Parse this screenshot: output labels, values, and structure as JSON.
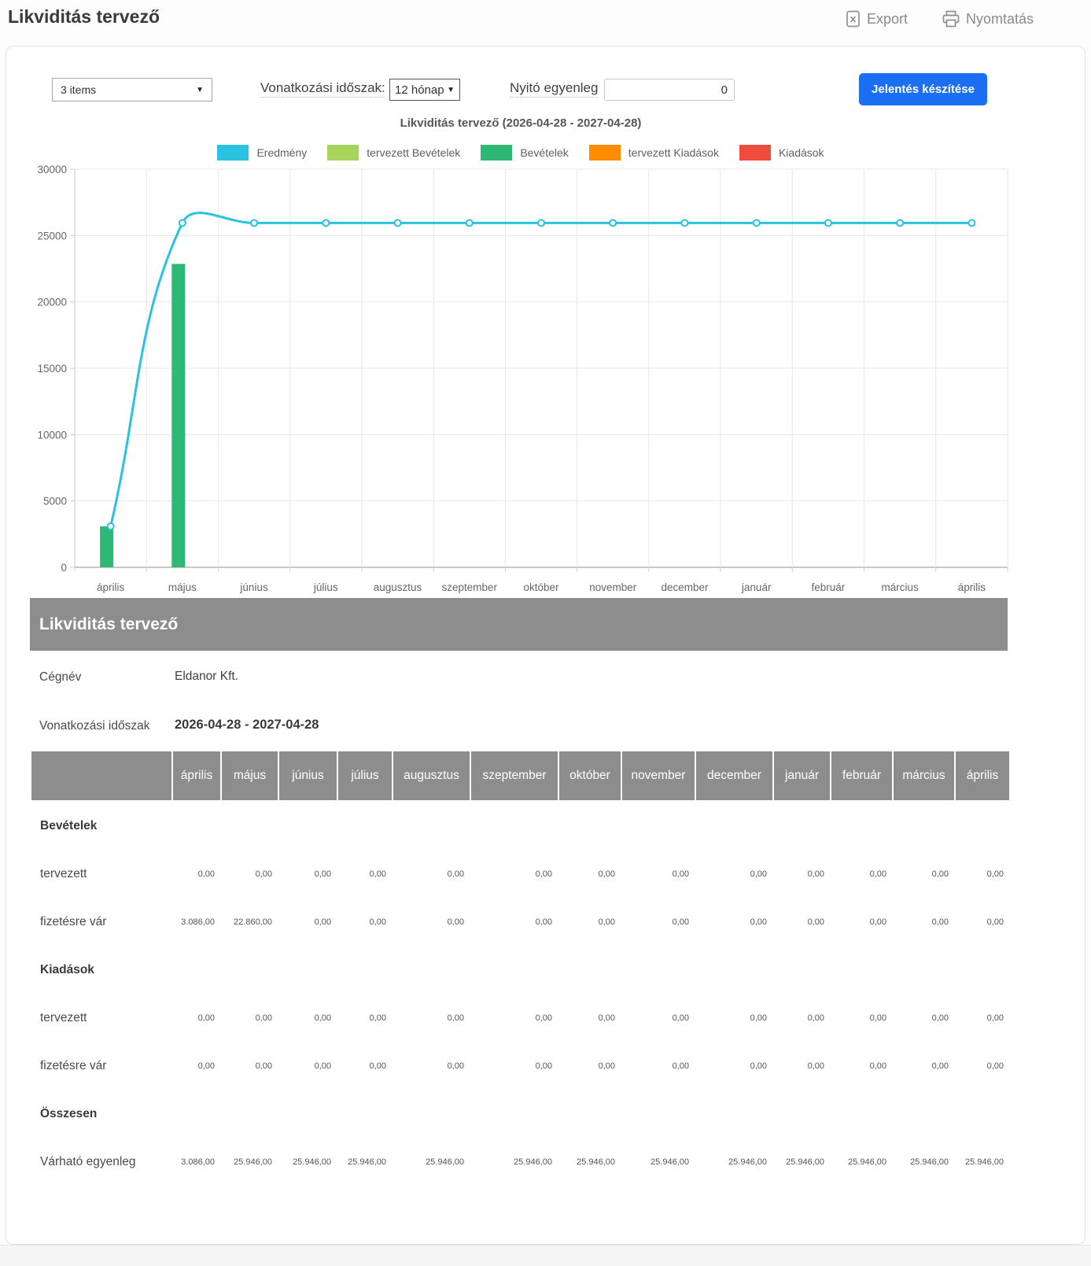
{
  "page": {
    "title": "Likviditás tervező",
    "export_label": "Export",
    "print_label": "Nyomtatás"
  },
  "toolbar": {
    "items_select": "3 items",
    "period_label": "Vonatkozási időszak:",
    "period_select": "12 hónap",
    "opening_balance_label": "Nyitó egyenleg",
    "opening_balance_value": "0",
    "report_button": "Jelentés készítése"
  },
  "chart_data": {
    "type": "line+bar",
    "title": "Likviditás tervező (2026-04-28 - 2027-04-28)",
    "categories": [
      "április",
      "május",
      "június",
      "július",
      "augusztus",
      "szeptember",
      "október",
      "november",
      "december",
      "január",
      "február",
      "március",
      "április"
    ],
    "ylim": [
      0,
      30000
    ],
    "ytick_step": 5000,
    "grid": true,
    "legend_position": "top",
    "legend": [
      {
        "label": "Eredmény",
        "color": "#29c2e1",
        "type": "line"
      },
      {
        "label": "tervezett Bevételek",
        "color": "#a8d45c",
        "type": "bar"
      },
      {
        "label": "Bevételek",
        "color": "#2db873",
        "type": "bar"
      },
      {
        "label": "tervezett Kiadások",
        "color": "#ff8c00",
        "type": "bar"
      },
      {
        "label": "Kiadások",
        "color": "#ee4c3c",
        "type": "bar"
      }
    ],
    "series": [
      {
        "name": "Eredmény",
        "type": "line",
        "color": "#29c2e1",
        "values": [
          3086,
          25946,
          25946,
          25946,
          25946,
          25946,
          25946,
          25946,
          25946,
          25946,
          25946,
          25946,
          25946
        ]
      },
      {
        "name": "tervezett Bevételek",
        "type": "bar",
        "color": "#a8d45c",
        "values": [
          0,
          0,
          0,
          0,
          0,
          0,
          0,
          0,
          0,
          0,
          0,
          0,
          0
        ]
      },
      {
        "name": "Bevételek",
        "type": "bar",
        "color": "#2db873",
        "values": [
          3086,
          22860,
          0,
          0,
          0,
          0,
          0,
          0,
          0,
          0,
          0,
          0,
          0
        ]
      },
      {
        "name": "tervezett Kiadások",
        "type": "bar",
        "color": "#ff8c00",
        "values": [
          0,
          0,
          0,
          0,
          0,
          0,
          0,
          0,
          0,
          0,
          0,
          0,
          0
        ]
      },
      {
        "name": "Kiadások",
        "type": "bar",
        "color": "#ee4c3c",
        "values": [
          0,
          0,
          0,
          0,
          0,
          0,
          0,
          0,
          0,
          0,
          0,
          0,
          0
        ]
      }
    ]
  },
  "report": {
    "band_title": "Likviditás tervező",
    "company_label": "Cégnév",
    "company_value": "Eldanor Kft.",
    "period_label": "Vonatkozási időszak",
    "period_value": "2026-04-28 - 2027-04-28",
    "months": [
      "április",
      "május",
      "június",
      "július",
      "augusztus",
      "szeptember",
      "október",
      "november",
      "december",
      "január",
      "február",
      "március",
      "április"
    ],
    "sections": [
      {
        "header": "Bevételek",
        "rows": [
          {
            "label": "tervezett",
            "values": [
              "0,00",
              "0,00",
              "0,00",
              "0,00",
              "0,00",
              "0,00",
              "0,00",
              "0,00",
              "0,00",
              "0,00",
              "0,00",
              "0,00",
              "0,00"
            ]
          },
          {
            "label": "fizetésre vár",
            "values": [
              "3.086,00",
              "22.860,00",
              "0,00",
              "0,00",
              "0,00",
              "0,00",
              "0,00",
              "0,00",
              "0,00",
              "0,00",
              "0,00",
              "0,00",
              "0,00"
            ]
          }
        ]
      },
      {
        "header": "Kiadások",
        "rows": [
          {
            "label": "tervezett",
            "values": [
              "0,00",
              "0,00",
              "0,00",
              "0,00",
              "0,00",
              "0,00",
              "0,00",
              "0,00",
              "0,00",
              "0,00",
              "0,00",
              "0,00",
              "0,00"
            ]
          },
          {
            "label": "fizetésre vár",
            "values": [
              "0,00",
              "0,00",
              "0,00",
              "0,00",
              "0,00",
              "0,00",
              "0,00",
              "0,00",
              "0,00",
              "0,00",
              "0,00",
              "0,00",
              "0,00"
            ]
          }
        ]
      },
      {
        "header": "Összesen",
        "rows": [
          {
            "label": "Várható egyenleg",
            "values": [
              "3.086,00",
              "25.946,00",
              "25.946,00",
              "25.946,00",
              "25.946,00",
              "25.946,00",
              "25.946,00",
              "25.946,00",
              "25.946,00",
              "25.946,00",
              "25.946,00",
              "25.946,00",
              "25.946,00"
            ]
          }
        ]
      }
    ]
  }
}
